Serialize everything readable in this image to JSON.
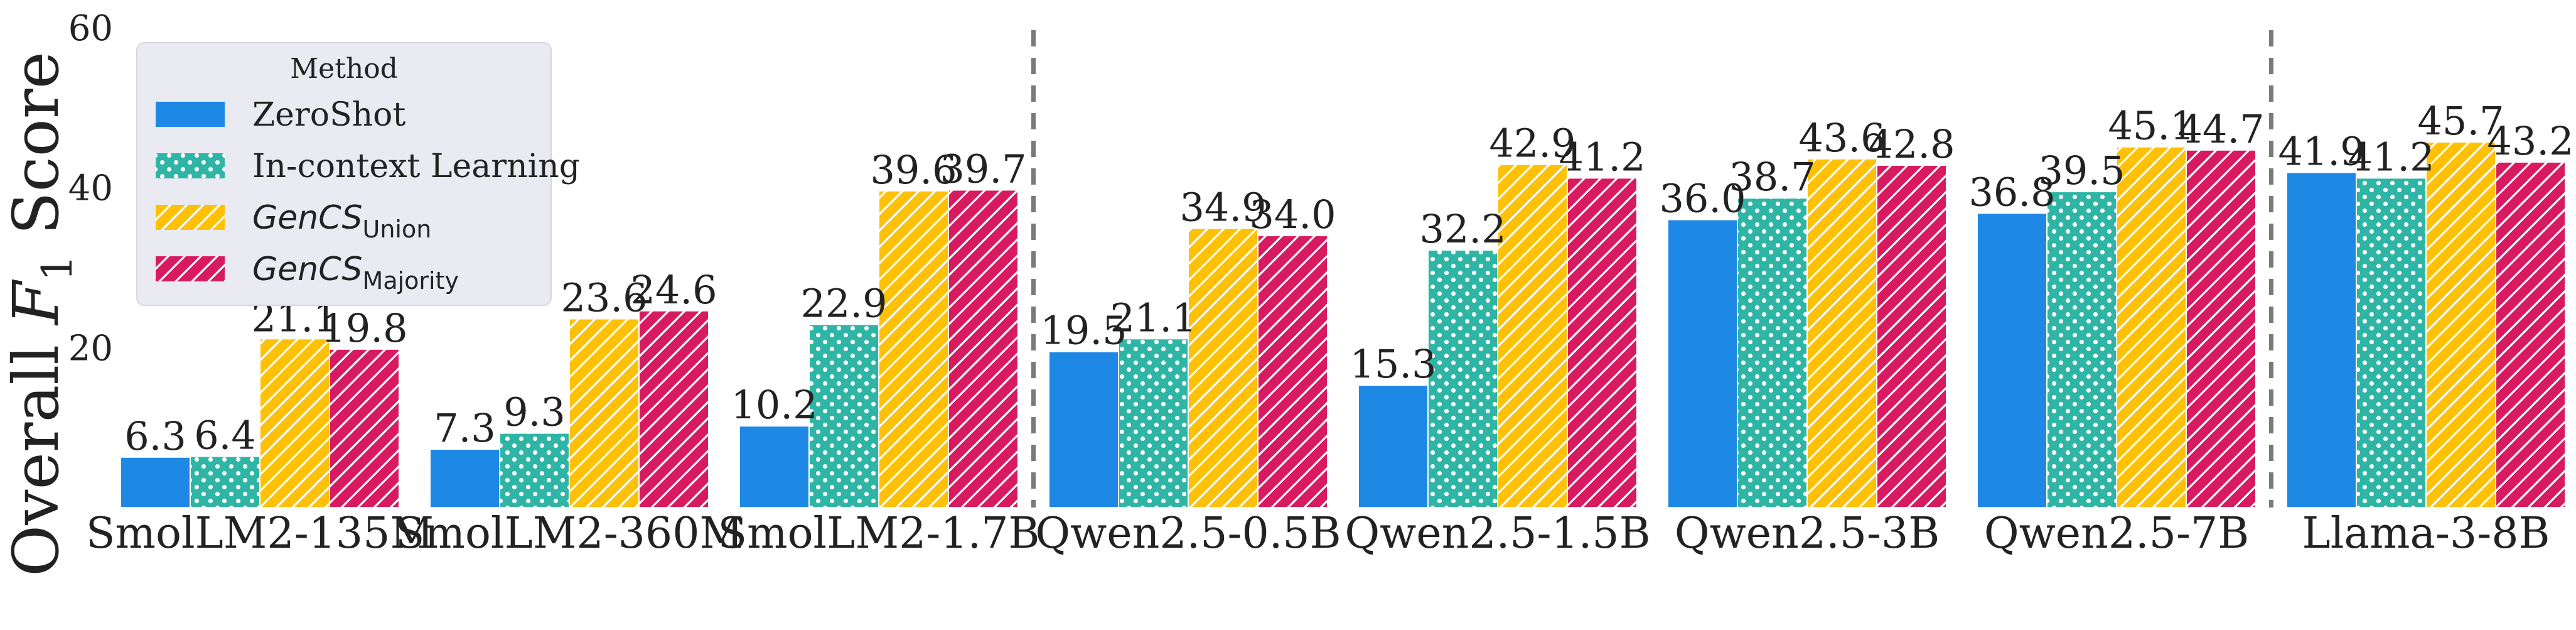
{
  "chart_data": {
    "type": "bar",
    "ylabel_prefix": "Overall ",
    "ylabel_symbol": "F",
    "ylabel_subscript": "1",
    "ylabel_suffix": " Score",
    "ylim": [
      0,
      60
    ],
    "yticks": [
      20,
      40,
      60
    ],
    "grid": false,
    "legend_position": "top-left",
    "legend_title": "Method",
    "categories": [
      "SmolLM2-135M",
      "SmolLM2-360M",
      "SmolLM2-1.7B",
      "Qwen2.5-0.5B",
      "Qwen2.5-1.5B",
      "Qwen2.5-3B",
      "Qwen2.5-7B",
      "Llama-3-8B"
    ],
    "group_separators_after": [
      "SmolLM2-1.7B",
      "Qwen2.5-7B"
    ],
    "series": [
      {
        "name": "ZeroShot",
        "color": "#1E88E5",
        "pattern": "solid",
        "values": [
          6.3,
          7.3,
          10.2,
          19.5,
          15.3,
          36.0,
          36.8,
          41.9
        ],
        "labels": [
          "6.3",
          "7.3",
          "10.2",
          "19.5",
          "15.3",
          "36.0",
          "36.8",
          "41.9"
        ]
      },
      {
        "name": "In-context Learning",
        "color": "#2EB5A5",
        "pattern": "dots",
        "values": [
          6.4,
          9.3,
          22.9,
          21.1,
          32.2,
          38.7,
          39.5,
          41.2
        ],
        "labels": [
          "6.4",
          "9.3",
          "22.9",
          "21.1",
          "32.2",
          "38.7",
          "39.5",
          "41.2"
        ]
      },
      {
        "name": "GenCS",
        "name_subscript": "Union",
        "color": "#FFC107",
        "pattern": "hatch",
        "values": [
          21.1,
          23.6,
          39.6,
          34.9,
          42.9,
          43.6,
          45.1,
          45.7
        ],
        "labels": [
          "21.1",
          "23.6",
          "39.6",
          "34.9",
          "42.9",
          "43.6",
          "45.1",
          "45.7"
        ]
      },
      {
        "name": "GenCS",
        "name_subscript": "Majority",
        "color": "#D81B60",
        "pattern": "hatch",
        "values": [
          19.8,
          24.6,
          39.7,
          34.0,
          41.2,
          42.8,
          44.7,
          43.2
        ],
        "labels": [
          "19.8",
          "24.6",
          "39.7",
          "34.0",
          "41.2",
          "42.8",
          "44.7",
          "43.2"
        ]
      }
    ]
  }
}
